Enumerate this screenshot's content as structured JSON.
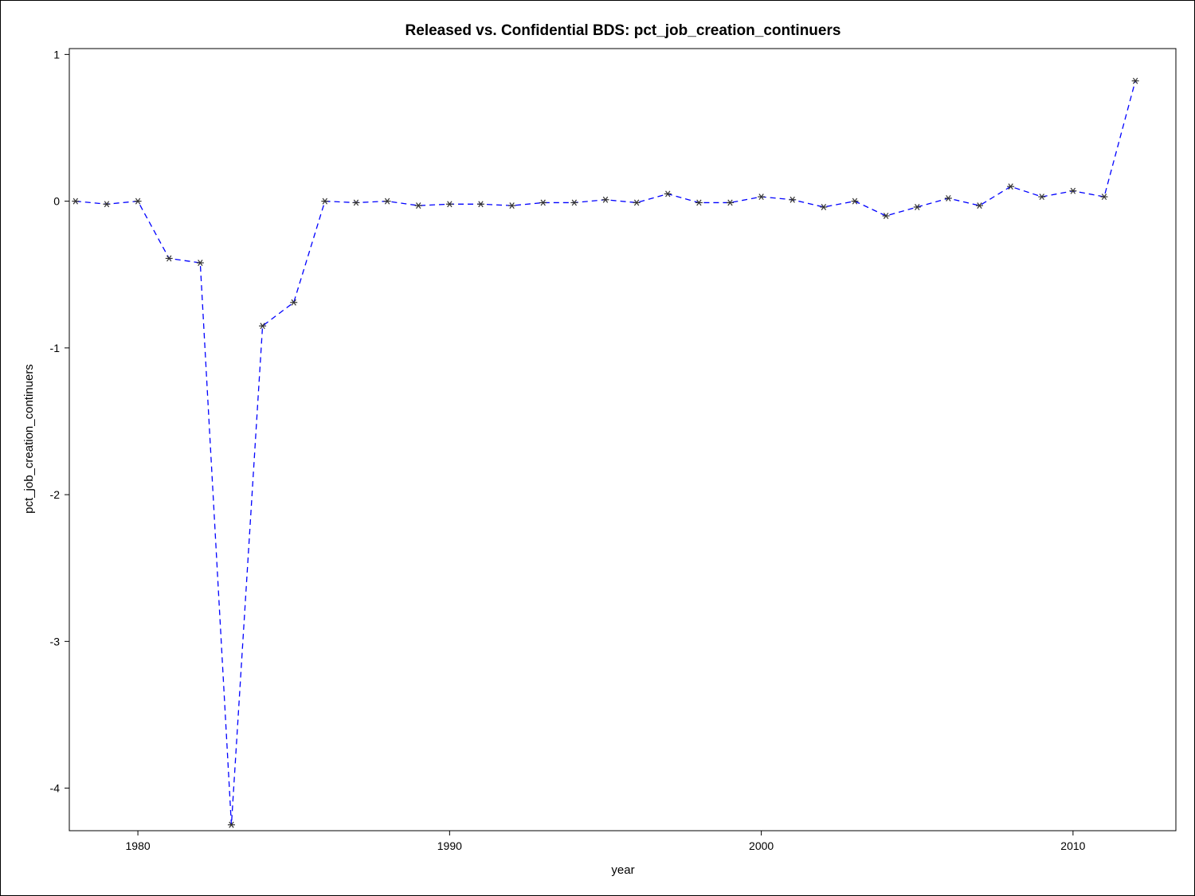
{
  "chart_data": {
    "type": "line",
    "title": "Released vs. Confidential BDS: pct_job_creation_continuers",
    "xlabel": "year",
    "ylabel": "pct_job_creation_continuers",
    "xlim": [
      1977.8,
      2013.3
    ],
    "ylim": [
      -4.29,
      1.04
    ],
    "xticks": [
      1980,
      1990,
      2000,
      2010
    ],
    "yticks": [
      1,
      0,
      -1,
      -2,
      -3,
      -4
    ],
    "grid": false,
    "line_color": "#0000ff",
    "line_style": "dashed",
    "marker": "asterisk",
    "marker_color": "#333333",
    "series": [
      {
        "x": [
          1978,
          1979,
          1980,
          1981,
          1982,
          1983,
          1984,
          1985,
          1986,
          1987,
          1988,
          1989,
          1990,
          1991,
          1992,
          1993,
          1994,
          1995,
          1996,
          1997,
          1998,
          1999,
          2000,
          2001,
          2002,
          2003,
          2004,
          2005,
          2006,
          2007,
          2008,
          2009,
          2010,
          2011,
          2012
        ],
        "y": [
          0.0,
          -0.02,
          0.0,
          -0.39,
          -0.42,
          -4.25,
          -0.85,
          -0.69,
          0.0,
          -0.01,
          0.0,
          -0.03,
          -0.02,
          -0.02,
          -0.03,
          -0.01,
          -0.01,
          0.01,
          -0.01,
          0.05,
          -0.01,
          -0.01,
          0.03,
          0.01,
          -0.04,
          0.0,
          -0.1,
          -0.04,
          0.02,
          -0.03,
          0.1,
          0.03,
          0.07,
          0.03,
          0.82
        ]
      }
    ]
  }
}
